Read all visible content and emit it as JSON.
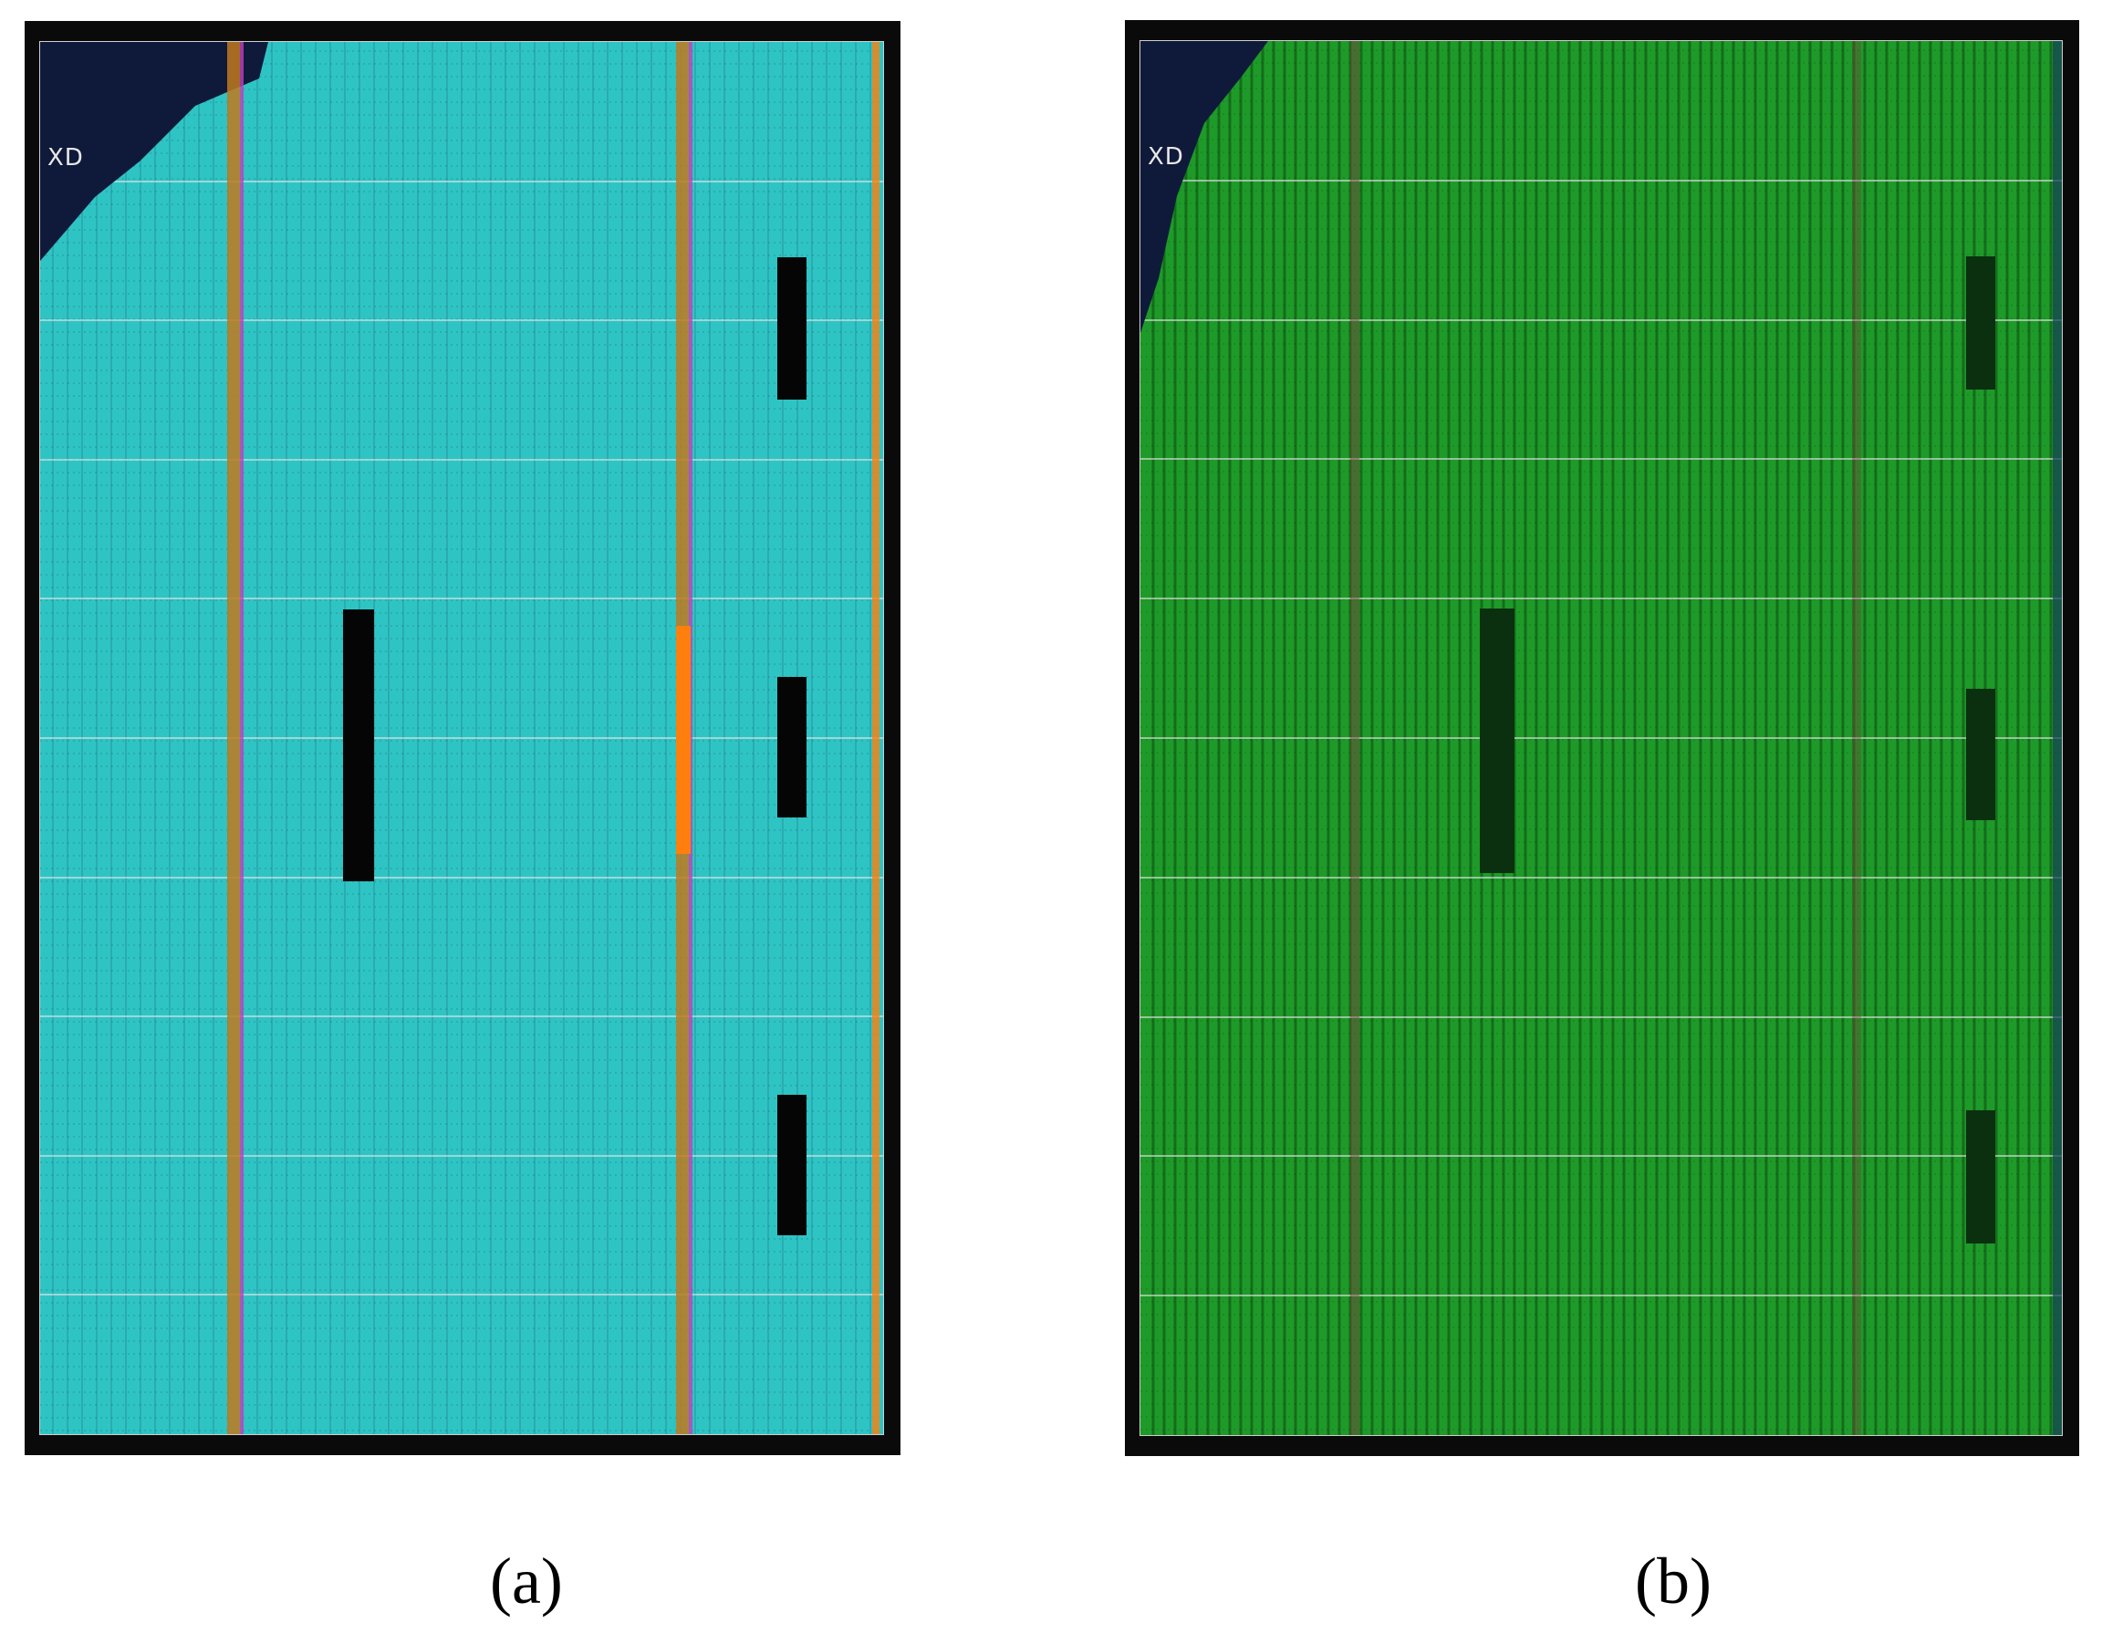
{
  "panels": [
    {
      "caption": "(a)",
      "device_label": "XD",
      "fill_color": "#2fc4c4",
      "empty_color": "#0f1a3a"
    },
    {
      "caption": "(b)",
      "device_label": "XD",
      "fill_color": "#1e9a28",
      "empty_color": "#0f1a3a"
    }
  ],
  "colors": {
    "frame": "#0a0a0a",
    "clock_region_border": "#e6e6e6",
    "highlight_orange": "#ff7f0e",
    "magenta": "#c040c0"
  }
}
